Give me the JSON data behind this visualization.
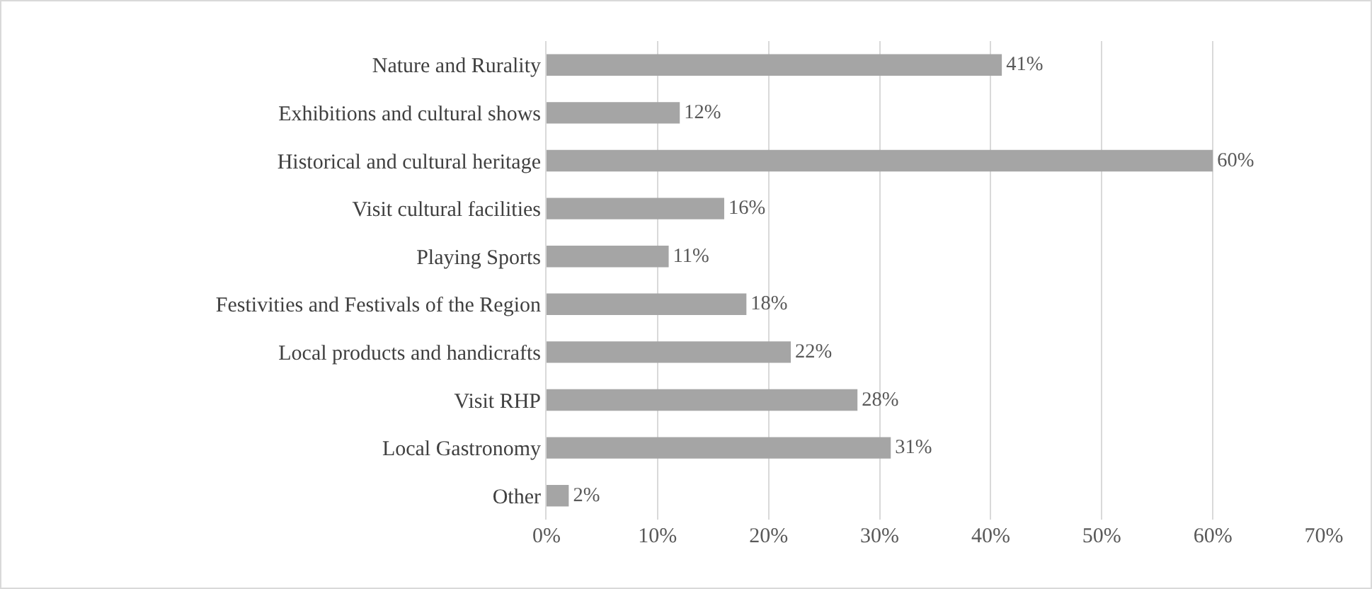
{
  "chart_data": {
    "type": "bar",
    "orientation": "horizontal",
    "categories": [
      "Nature and Rurality",
      "Exhibitions and cultural shows",
      "Historical and cultural heritage",
      "Visit cultural facilities",
      "Playing Sports",
      "Festivities and Festivals of the Region",
      "Local products and handicrafts",
      "Visit RHP",
      "Local Gastronomy",
      "Other"
    ],
    "values": [
      41,
      12,
      60,
      16,
      11,
      18,
      22,
      28,
      31,
      2
    ],
    "value_labels": [
      "41%",
      "12%",
      "60%",
      "16%",
      "11%",
      "18%",
      "22%",
      "28%",
      "31%",
      "2%"
    ],
    "color": "#a5a5a5",
    "xlim": [
      0,
      70
    ],
    "xticks": [
      {
        "value": 0,
        "label": "0%"
      },
      {
        "value": 10,
        "label": "10%"
      },
      {
        "value": 20,
        "label": "20%"
      },
      {
        "value": 30,
        "label": "30%"
      },
      {
        "value": 40,
        "label": "40%"
      },
      {
        "value": 50,
        "label": "50%"
      },
      {
        "value": 60,
        "label": "60%"
      },
      {
        "value": 70,
        "label": "70%"
      }
    ],
    "grid": "x"
  }
}
